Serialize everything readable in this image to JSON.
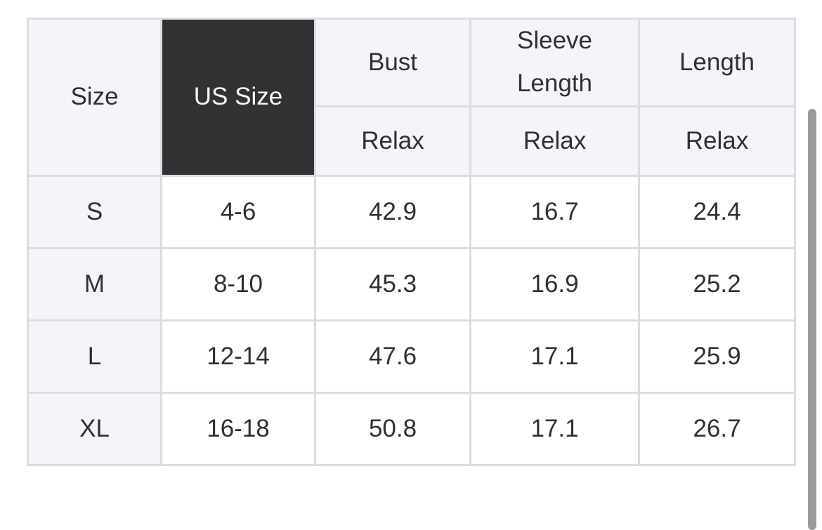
{
  "size_chart": {
    "columns": {
      "size_label": "Size",
      "us_size_label": "US Size",
      "measurements": [
        "Bust",
        "Sleeve Length",
        "Length"
      ]
    },
    "fit_row": [
      "Relax",
      "Relax",
      "Relax"
    ],
    "rows": [
      {
        "size": "S",
        "us_size": "4-6",
        "bust": "42.9",
        "sleeve_length": "16.7",
        "length": "24.4"
      },
      {
        "size": "M",
        "us_size": "8-10",
        "bust": "45.3",
        "sleeve_length": "16.9",
        "length": "25.2"
      },
      {
        "size": "L",
        "us_size": "12-14",
        "bust": "47.6",
        "sleeve_length": "17.1",
        "length": "25.9"
      },
      {
        "size": "XL",
        "us_size": "16-18",
        "bust": "50.8",
        "sleeve_length": "17.1",
        "length": "26.7"
      }
    ]
  },
  "colors": {
    "us_size_header_bg": "#323234",
    "us_size_header_text": "#f7f7f7",
    "header_cell_bg": "#f4f5f8",
    "data_cell_bg": "#ffffff",
    "border": "#dcdde1",
    "text": "#2f3033",
    "scrollbar_thumb": "#9c9c9c"
  }
}
